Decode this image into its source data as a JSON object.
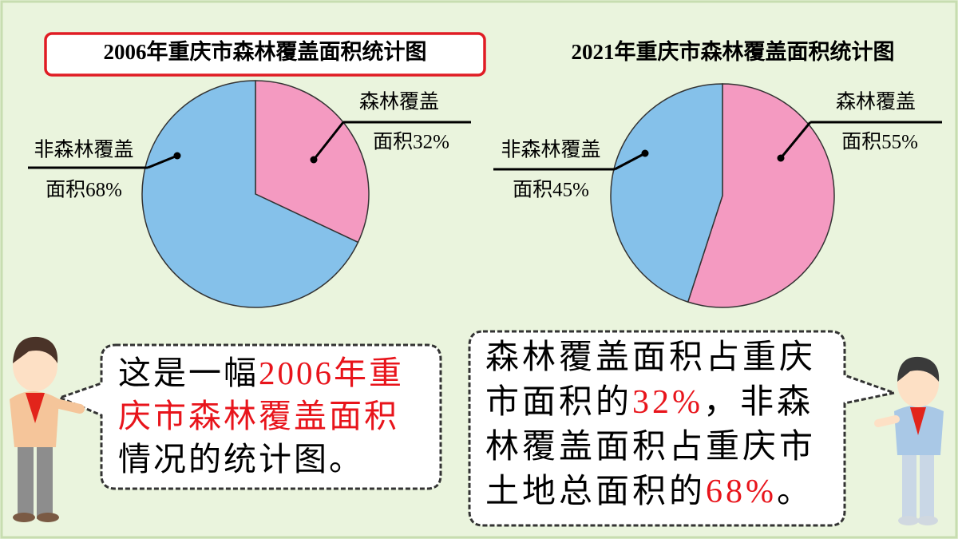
{
  "chart_data": [
    {
      "type": "pie",
      "title": "2006年重庆市森林覆盖面积统计图",
      "categories": [
        "森林覆盖",
        "非森林覆盖"
      ],
      "values": [
        32,
        68
      ],
      "value_labels": [
        "面积32%",
        "面积68%"
      ],
      "colors": [
        "#f49ac1",
        "#85c1ea"
      ]
    },
    {
      "type": "pie",
      "title": "2021年重庆市森林覆盖面积统计图",
      "categories": [
        "森林覆盖",
        "非森林覆盖"
      ],
      "values": [
        55,
        45
      ],
      "value_labels": [
        "面积55%",
        "面积45%"
      ],
      "colors": [
        "#f49ac1",
        "#85c1ea"
      ]
    }
  ],
  "bubbles": [
    {
      "segments": [
        {
          "text": "这是一幅",
          "color": "#000000"
        },
        {
          "text": "2006年重庆市森林覆盖面积",
          "color": "#e8141b"
        },
        {
          "text": "情况的统计图。",
          "color": "#000000"
        }
      ]
    },
    {
      "segments": [
        {
          "text": "森林覆盖面积占重庆市面积的",
          "color": "#000000"
        },
        {
          "text": "32%",
          "color": "#e8141b"
        },
        {
          "text": "，非森林覆盖面积占重庆市土地总面积的",
          "color": "#000000"
        },
        {
          "text": "68%",
          "color": "#e8141b"
        },
        {
          "text": "。",
          "color": "#000000"
        }
      ]
    }
  ]
}
